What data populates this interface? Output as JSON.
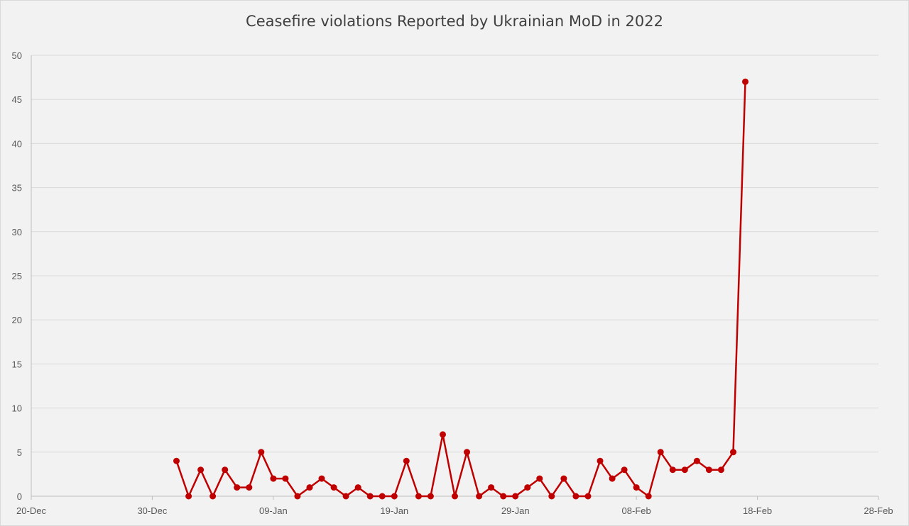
{
  "chart_data": {
    "type": "line",
    "title": "Ceasefire violations Reported by Ukrainian MoD in 2022",
    "xlabel": "",
    "ylabel": "",
    "x_axis_type": "date",
    "xlim": [
      "2021-12-20",
      "2022-02-28"
    ],
    "x_ticks": [
      "20-Dec",
      "30-Dec",
      "09-Jan",
      "19-Jan",
      "29-Jan",
      "08-Feb",
      "18-Feb",
      "28-Feb"
    ],
    "ylim": [
      0,
      50
    ],
    "y_ticks": [
      0,
      5,
      10,
      15,
      20,
      25,
      30,
      35,
      40,
      45,
      50
    ],
    "grid": true,
    "legend": "none",
    "colors": {
      "series": "#c00000",
      "grid": "#d9d9d9",
      "axis": "#bfbfbf",
      "background": "#f2f2f2"
    },
    "series": [
      {
        "dates": [
          "2022-01-01",
          "2022-01-02",
          "2022-01-03",
          "2022-01-04",
          "2022-01-05",
          "2022-01-06",
          "2022-01-07",
          "2022-01-08",
          "2022-01-09",
          "2022-01-10",
          "2022-01-11",
          "2022-01-12",
          "2022-01-13",
          "2022-01-14",
          "2022-01-15",
          "2022-01-16",
          "2022-01-17",
          "2022-01-18",
          "2022-01-19",
          "2022-01-20",
          "2022-01-21",
          "2022-01-22",
          "2022-01-23",
          "2022-01-24",
          "2022-01-25",
          "2022-01-26",
          "2022-01-27",
          "2022-01-28",
          "2022-01-29",
          "2022-01-30",
          "2022-01-31",
          "2022-02-01",
          "2022-02-02",
          "2022-02-03",
          "2022-02-04",
          "2022-02-05",
          "2022-02-06",
          "2022-02-07",
          "2022-02-08",
          "2022-02-09",
          "2022-02-10",
          "2022-02-11",
          "2022-02-12",
          "2022-02-13",
          "2022-02-14",
          "2022-02-15",
          "2022-02-16",
          "2022-02-17"
        ],
        "values": [
          4,
          0,
          3,
          0,
          3,
          1,
          1,
          5,
          2,
          2,
          0,
          1,
          2,
          1,
          0,
          1,
          0,
          0,
          0,
          4,
          0,
          0,
          7,
          0,
          5,
          0,
          1,
          0,
          0,
          1,
          2,
          0,
          2,
          0,
          0,
          4,
          2,
          3,
          1,
          0,
          5,
          3,
          3,
          4,
          3,
          3,
          5,
          47
        ]
      }
    ]
  }
}
